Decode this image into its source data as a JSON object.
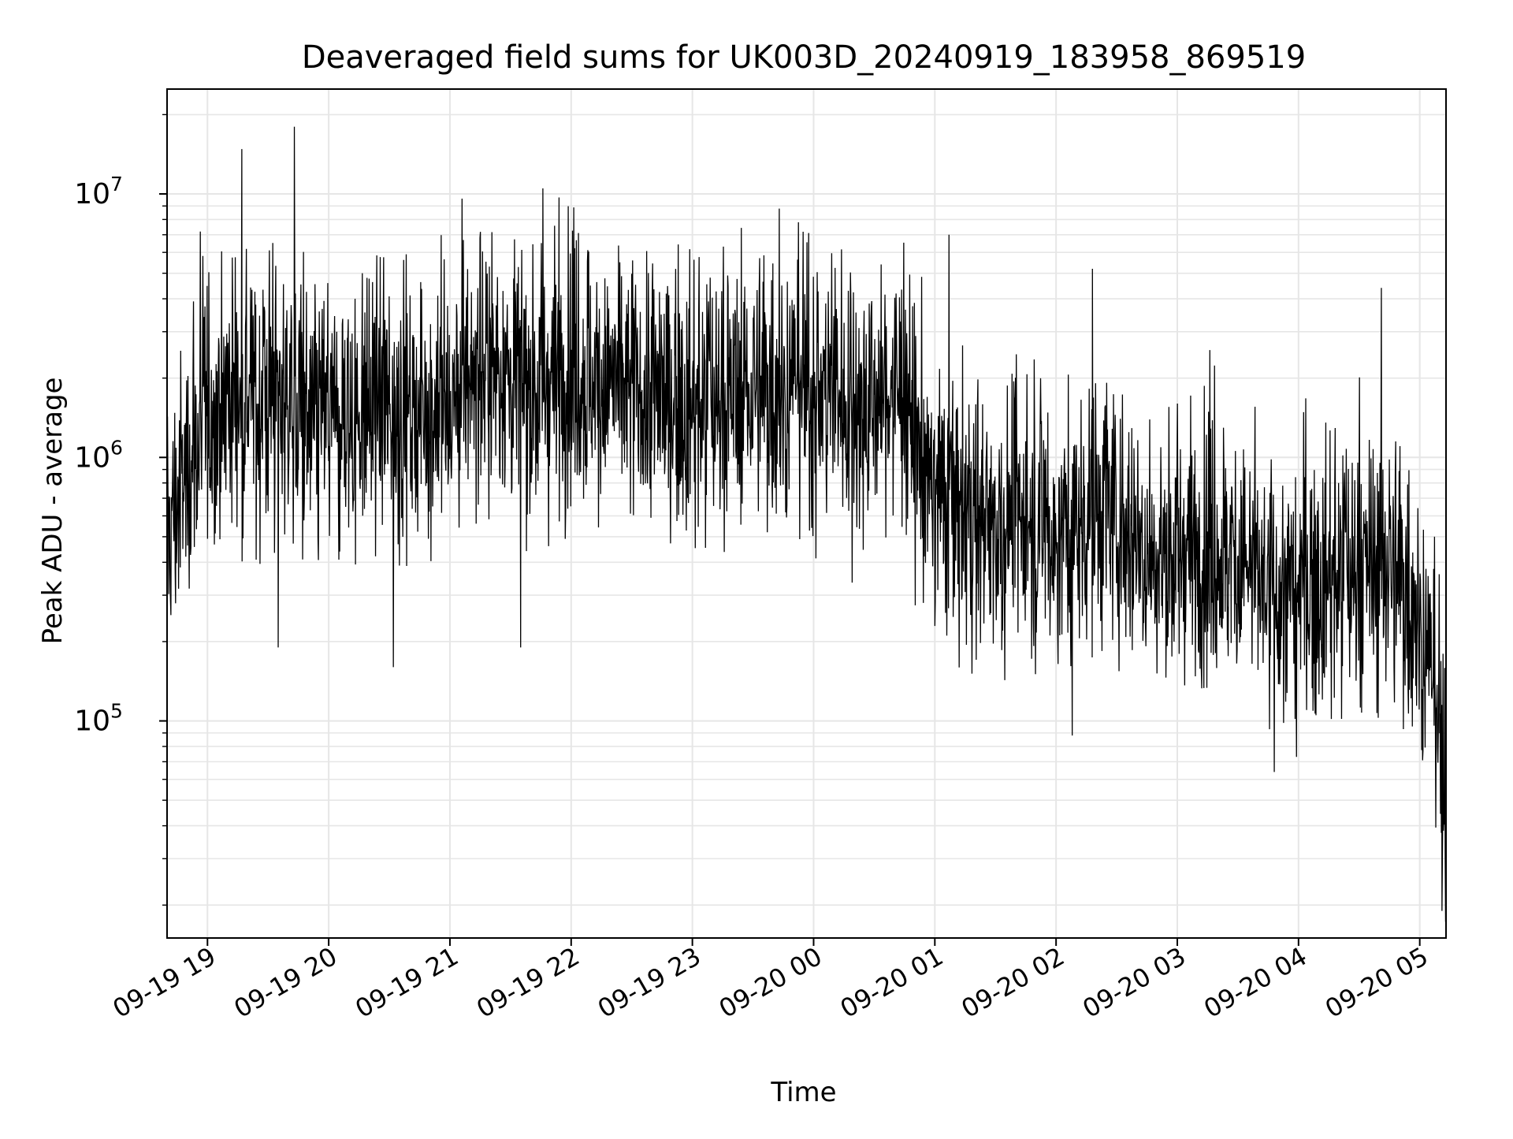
{
  "chart_data": {
    "type": "line",
    "title": "Deaveraged field sums for UK003D_20240919_183958_869519",
    "xlabel": "Time",
    "ylabel": "Peak ADU - average",
    "yscale": "log",
    "grid": true,
    "line_color": "#000000",
    "grid_color": "#e6e6e6",
    "xlim": [
      "2024-09-19 18:40",
      "2024-09-20 05:13"
    ],
    "ylim": [
      15000,
      25000000
    ],
    "x_ticks": [
      "09-19 19",
      "09-19 20",
      "09-19 21",
      "09-19 22",
      "09-19 23",
      "09-20 00",
      "09-20 01",
      "09-20 02",
      "09-20 03",
      "09-20 04",
      "09-20 05"
    ],
    "y_ticks": [
      {
        "base": "10",
        "exp": "5"
      },
      {
        "base": "10",
        "exp": "6"
      },
      {
        "base": "10",
        "exp": "7"
      }
    ],
    "series": [
      {
        "x": [
          "2024-09-19 18:40",
          "2024-09-19 18:50",
          "2024-09-19 19:00",
          "2024-09-19 19:10",
          "2024-09-19 19:20",
          "2024-09-19 19:30",
          "2024-09-19 19:40",
          "2024-09-19 19:50",
          "2024-09-19 20:00",
          "2024-09-19 20:15",
          "2024-09-19 20:30",
          "2024-09-19 20:45",
          "2024-09-19 21:00",
          "2024-09-19 21:15",
          "2024-09-19 21:30",
          "2024-09-19 21:45",
          "2024-09-19 22:00",
          "2024-09-19 22:15",
          "2024-09-19 22:30",
          "2024-09-19 22:45",
          "2024-09-19 23:00",
          "2024-09-19 23:15",
          "2024-09-19 23:30",
          "2024-09-19 23:45",
          "2024-09-20 00:00",
          "2024-09-20 00:15",
          "2024-09-20 00:30",
          "2024-09-20 00:45",
          "2024-09-20 01:00",
          "2024-09-20 01:15",
          "2024-09-20 01:30",
          "2024-09-20 01:45",
          "2024-09-20 02:00",
          "2024-09-20 02:15",
          "2024-09-20 02:30",
          "2024-09-20 02:45",
          "2024-09-20 03:00",
          "2024-09-20 03:15",
          "2024-09-20 03:30",
          "2024-09-20 03:45",
          "2024-09-20 04:00",
          "2024-09-20 04:15",
          "2024-09-20 04:30",
          "2024-09-20 04:45",
          "2024-09-20 05:00",
          "2024-09-20 05:05",
          "2024-09-20 05:10",
          "2024-09-20 05:13"
        ],
        "center": [
          500000,
          900000,
          1400000,
          1800000,
          1600000,
          1800000,
          1700000,
          1400000,
          1300000,
          1500000,
          1600000,
          1500000,
          1600000,
          2200000,
          2000000,
          1700000,
          2200000,
          1900000,
          1800000,
          1700000,
          1600000,
          1700000,
          1800000,
          1800000,
          1900000,
          1700000,
          1600000,
          1800000,
          700000,
          650000,
          550000,
          600000,
          500000,
          650000,
          600000,
          450000,
          420000,
          450000,
          420000,
          300000,
          300000,
          360000,
          380000,
          400000,
          250000,
          150000,
          90000,
          30000
        ],
        "low": [
          300000,
          400000,
          500000,
          600000,
          500000,
          500000,
          500000,
          450000,
          450000,
          500000,
          500000,
          500000,
          500000,
          600000,
          600000,
          550000,
          650000,
          650000,
          650000,
          600000,
          550000,
          550000,
          550000,
          600000,
          500000,
          400000,
          300000,
          300000,
          250000,
          200000,
          180000,
          200000,
          180000,
          180000,
          180000,
          170000,
          170000,
          170000,
          150000,
          120000,
          120000,
          130000,
          130000,
          130000,
          100000,
          60000,
          35000,
          19000
        ],
        "high": [
          2000000,
          5500000,
          5500000,
          5500000,
          5000000,
          5500000,
          5000000,
          6000000,
          5500000,
          5500000,
          5000000,
          5500000,
          6000000,
          6000000,
          5500000,
          6000000,
          7000000,
          6000000,
          5000000,
          5000000,
          5000000,
          5000000,
          7000000,
          6000000,
          6000000,
          5500000,
          5000000,
          5000000,
          3500000,
          3500000,
          2500000,
          3500000,
          3500000,
          4000000,
          3000000,
          2500000,
          2000000,
          2000000,
          1800000,
          1500000,
          1500000,
          1500000,
          2000000,
          2500000,
          900000,
          500000,
          300000,
          100000
        ]
      }
    ],
    "peaks": [
      {
        "x": "2024-09-19 19:17",
        "y": 14800000
      },
      {
        "x": "2024-09-19 19:43",
        "y": 18000000
      },
      {
        "x": "2024-09-19 21:46",
        "y": 10500000
      },
      {
        "x": "2024-09-19 21:54",
        "y": 9700000
      },
      {
        "x": "2024-09-19 21:06",
        "y": 9600000
      },
      {
        "x": "2024-09-19 23:43",
        "y": 8800000
      },
      {
        "x": "2024-09-20 01:07",
        "y": 7000000
      },
      {
        "x": "2024-09-20 02:18",
        "y": 5200000
      },
      {
        "x": "2024-09-20 04:41",
        "y": 4400000
      },
      {
        "x": "2024-09-20 03:59",
        "y": 2500000
      },
      {
        "x": "2024-09-19 19:35",
        "y": 190000
      },
      {
        "x": "2024-09-19 20:32",
        "y": 160000
      },
      {
        "x": "2024-09-19 21:35",
        "y": 190000
      },
      {
        "x": "2024-09-20 02:08",
        "y": 88000
      },
      {
        "x": "2024-09-20 03:48",
        "y": 64000
      },
      {
        "x": "2024-09-20 03:59",
        "y": 73000
      },
      {
        "x": "2024-09-20 05:11",
        "y": 19000
      }
    ]
  }
}
